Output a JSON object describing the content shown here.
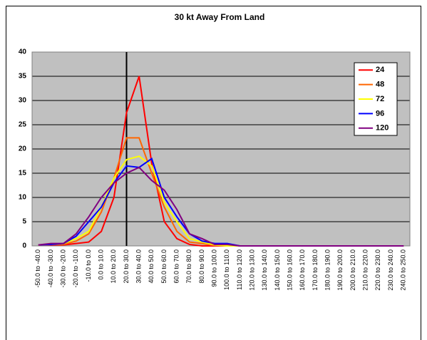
{
  "chart_data": {
    "type": "line",
    "title": "30 kt   Away From Land",
    "categories": [
      "-50.0 to -40.0",
      "-40.0 to -30.0",
      "-30.0 to -20.0",
      "-20.0 to -10.0",
      "-10.0 to 0.0",
      "0.0 to 10.0",
      "10.0 to 20.0",
      "20.0 to 30.0",
      "30.0 to 40.0",
      "40.0 to 50.0",
      "50.0 to 60.0",
      "60.0 to 70.0",
      "70.0 to 80.0",
      "80.0 to 90.0",
      "90.0 to 100.0",
      "100.0 to 110.0",
      "110.0 to 120.0",
      "120.0 to 130.0",
      "130.0 to 140.0",
      "140.0 to 150.0",
      "150.0 to 160.0",
      "160.0 to 170.0",
      "170.0 to 180.0",
      "180.0 to 190.0",
      "190.0 to 200.0",
      "200.0 to 210.0",
      "210.0 to 220.0",
      "220.0 to 230.0",
      "230.0 to 240.0",
      "240.0 to 250.0"
    ],
    "series": [
      {
        "name": "24",
        "color": "#ff0000",
        "values": [
          0.2,
          0.2,
          0.2,
          0.5,
          0.8,
          3,
          10,
          27.5,
          35,
          17,
          5,
          1.5,
          0.3,
          0,
          0,
          0,
          0,
          0,
          0,
          0,
          0,
          0,
          0,
          0,
          0,
          0,
          0,
          0,
          0,
          0
        ]
      },
      {
        "name": "48",
        "color": "#ff6600",
        "values": [
          0.2,
          0.3,
          0.3,
          1,
          2.5,
          7,
          14,
          22.3,
          22.3,
          15,
          8,
          3,
          0.8,
          0.5,
          0.1,
          0,
          0,
          0,
          0,
          0,
          0,
          0,
          0,
          0,
          0,
          0,
          0,
          0,
          0,
          0
        ]
      },
      {
        "name": "72",
        "color": "#ffff00",
        "values": [
          0.2,
          0.3,
          0.5,
          1.5,
          3,
          8,
          14,
          17.8,
          18.5,
          16.5,
          9,
          5,
          1.5,
          0.8,
          0.2,
          0,
          0,
          0,
          0,
          0,
          0,
          0,
          0,
          0,
          0,
          0,
          0,
          0,
          0,
          0
        ]
      },
      {
        "name": "96",
        "color": "#0000ff",
        "values": [
          0.2,
          0.3,
          0.5,
          2,
          5,
          8,
          13,
          16.5,
          16.2,
          18,
          10,
          6,
          2.5,
          1,
          0.5,
          0.5,
          0,
          0,
          0,
          0,
          0,
          0,
          0,
          0,
          0,
          0,
          0,
          0,
          0,
          0
        ]
      },
      {
        "name": "120",
        "color": "#800080",
        "values": [
          0.2,
          0.5,
          0.5,
          2.5,
          6,
          10,
          13,
          15,
          16.2,
          13.5,
          11.5,
          7.5,
          2.5,
          1.5,
          0.3,
          0.3,
          0,
          0,
          0,
          0,
          0,
          0,
          0,
          0,
          0,
          0,
          0,
          0,
          0,
          0
        ]
      }
    ],
    "ylim": [
      0,
      40
    ],
    "yticks": [
      0,
      5,
      10,
      15,
      20,
      25,
      30,
      35,
      40
    ],
    "grid": true,
    "legend": "upper right"
  }
}
